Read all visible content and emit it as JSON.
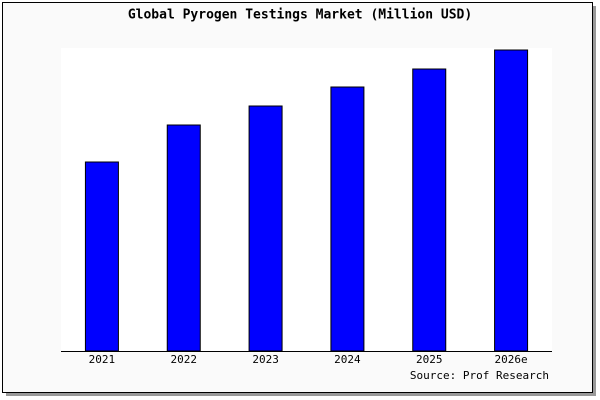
{
  "chart_data": {
    "type": "bar",
    "title": "Global Pyrogen Testings Market (Million USD)",
    "categories": [
      "2021",
      "2022",
      "2023",
      "2024",
      "2025",
      "2026e"
    ],
    "values": [
      189,
      226,
      245,
      264,
      282,
      301
    ],
    "color": "#0000ff",
    "source": "Source: Prof Research"
  }
}
